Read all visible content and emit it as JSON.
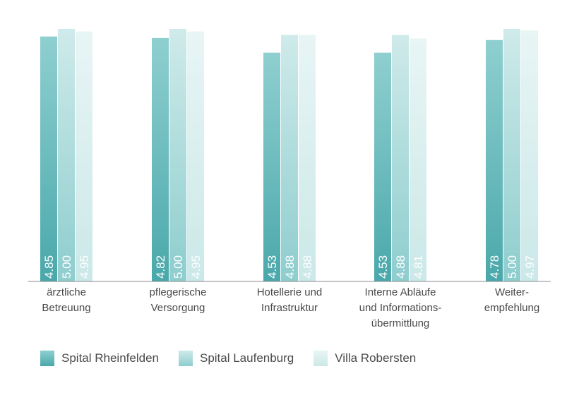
{
  "chart_data": {
    "type": "bar",
    "categories": [
      [
        "ärztliche",
        "Betreuung"
      ],
      [
        "pflegerische",
        "Versorgung"
      ],
      [
        "Hotellerie und",
        "Infrastruktur"
      ],
      [
        "Interne Abläufe",
        "und Informations-",
        "übermittlung"
      ],
      [
        "Weiter-",
        "empfehlung"
      ]
    ],
    "series": [
      {
        "name": "Spital Rheinfelden",
        "values": [
          4.85,
          4.82,
          4.53,
          4.53,
          4.78
        ],
        "value_labels": [
          "4.85",
          "4.82",
          "4.53",
          "4.53",
          "4.78"
        ],
        "color_top": "#8fcfd0",
        "color_bottom": "#4aa8aa"
      },
      {
        "name": "Spital Laufenburg",
        "values": [
          5.0,
          5.0,
          4.88,
          4.88,
          5.0
        ],
        "value_labels": [
          "5.00",
          "5.00",
          "4.88",
          "4.88",
          "5.00"
        ],
        "color_top": "#cfeaea",
        "color_bottom": "#8ecdce"
      },
      {
        "name": "Villa Robersten",
        "values": [
          4.95,
          4.95,
          4.88,
          4.81,
          4.97
        ],
        "value_labels": [
          "4.95",
          "4.95",
          "4.88",
          "4.81",
          "4.97"
        ],
        "color_top": "#e8f5f5",
        "color_bottom": "#cbe8e8"
      }
    ],
    "ylim": [
      0,
      5
    ],
    "grid": false,
    "legend": "bottom-left"
  }
}
